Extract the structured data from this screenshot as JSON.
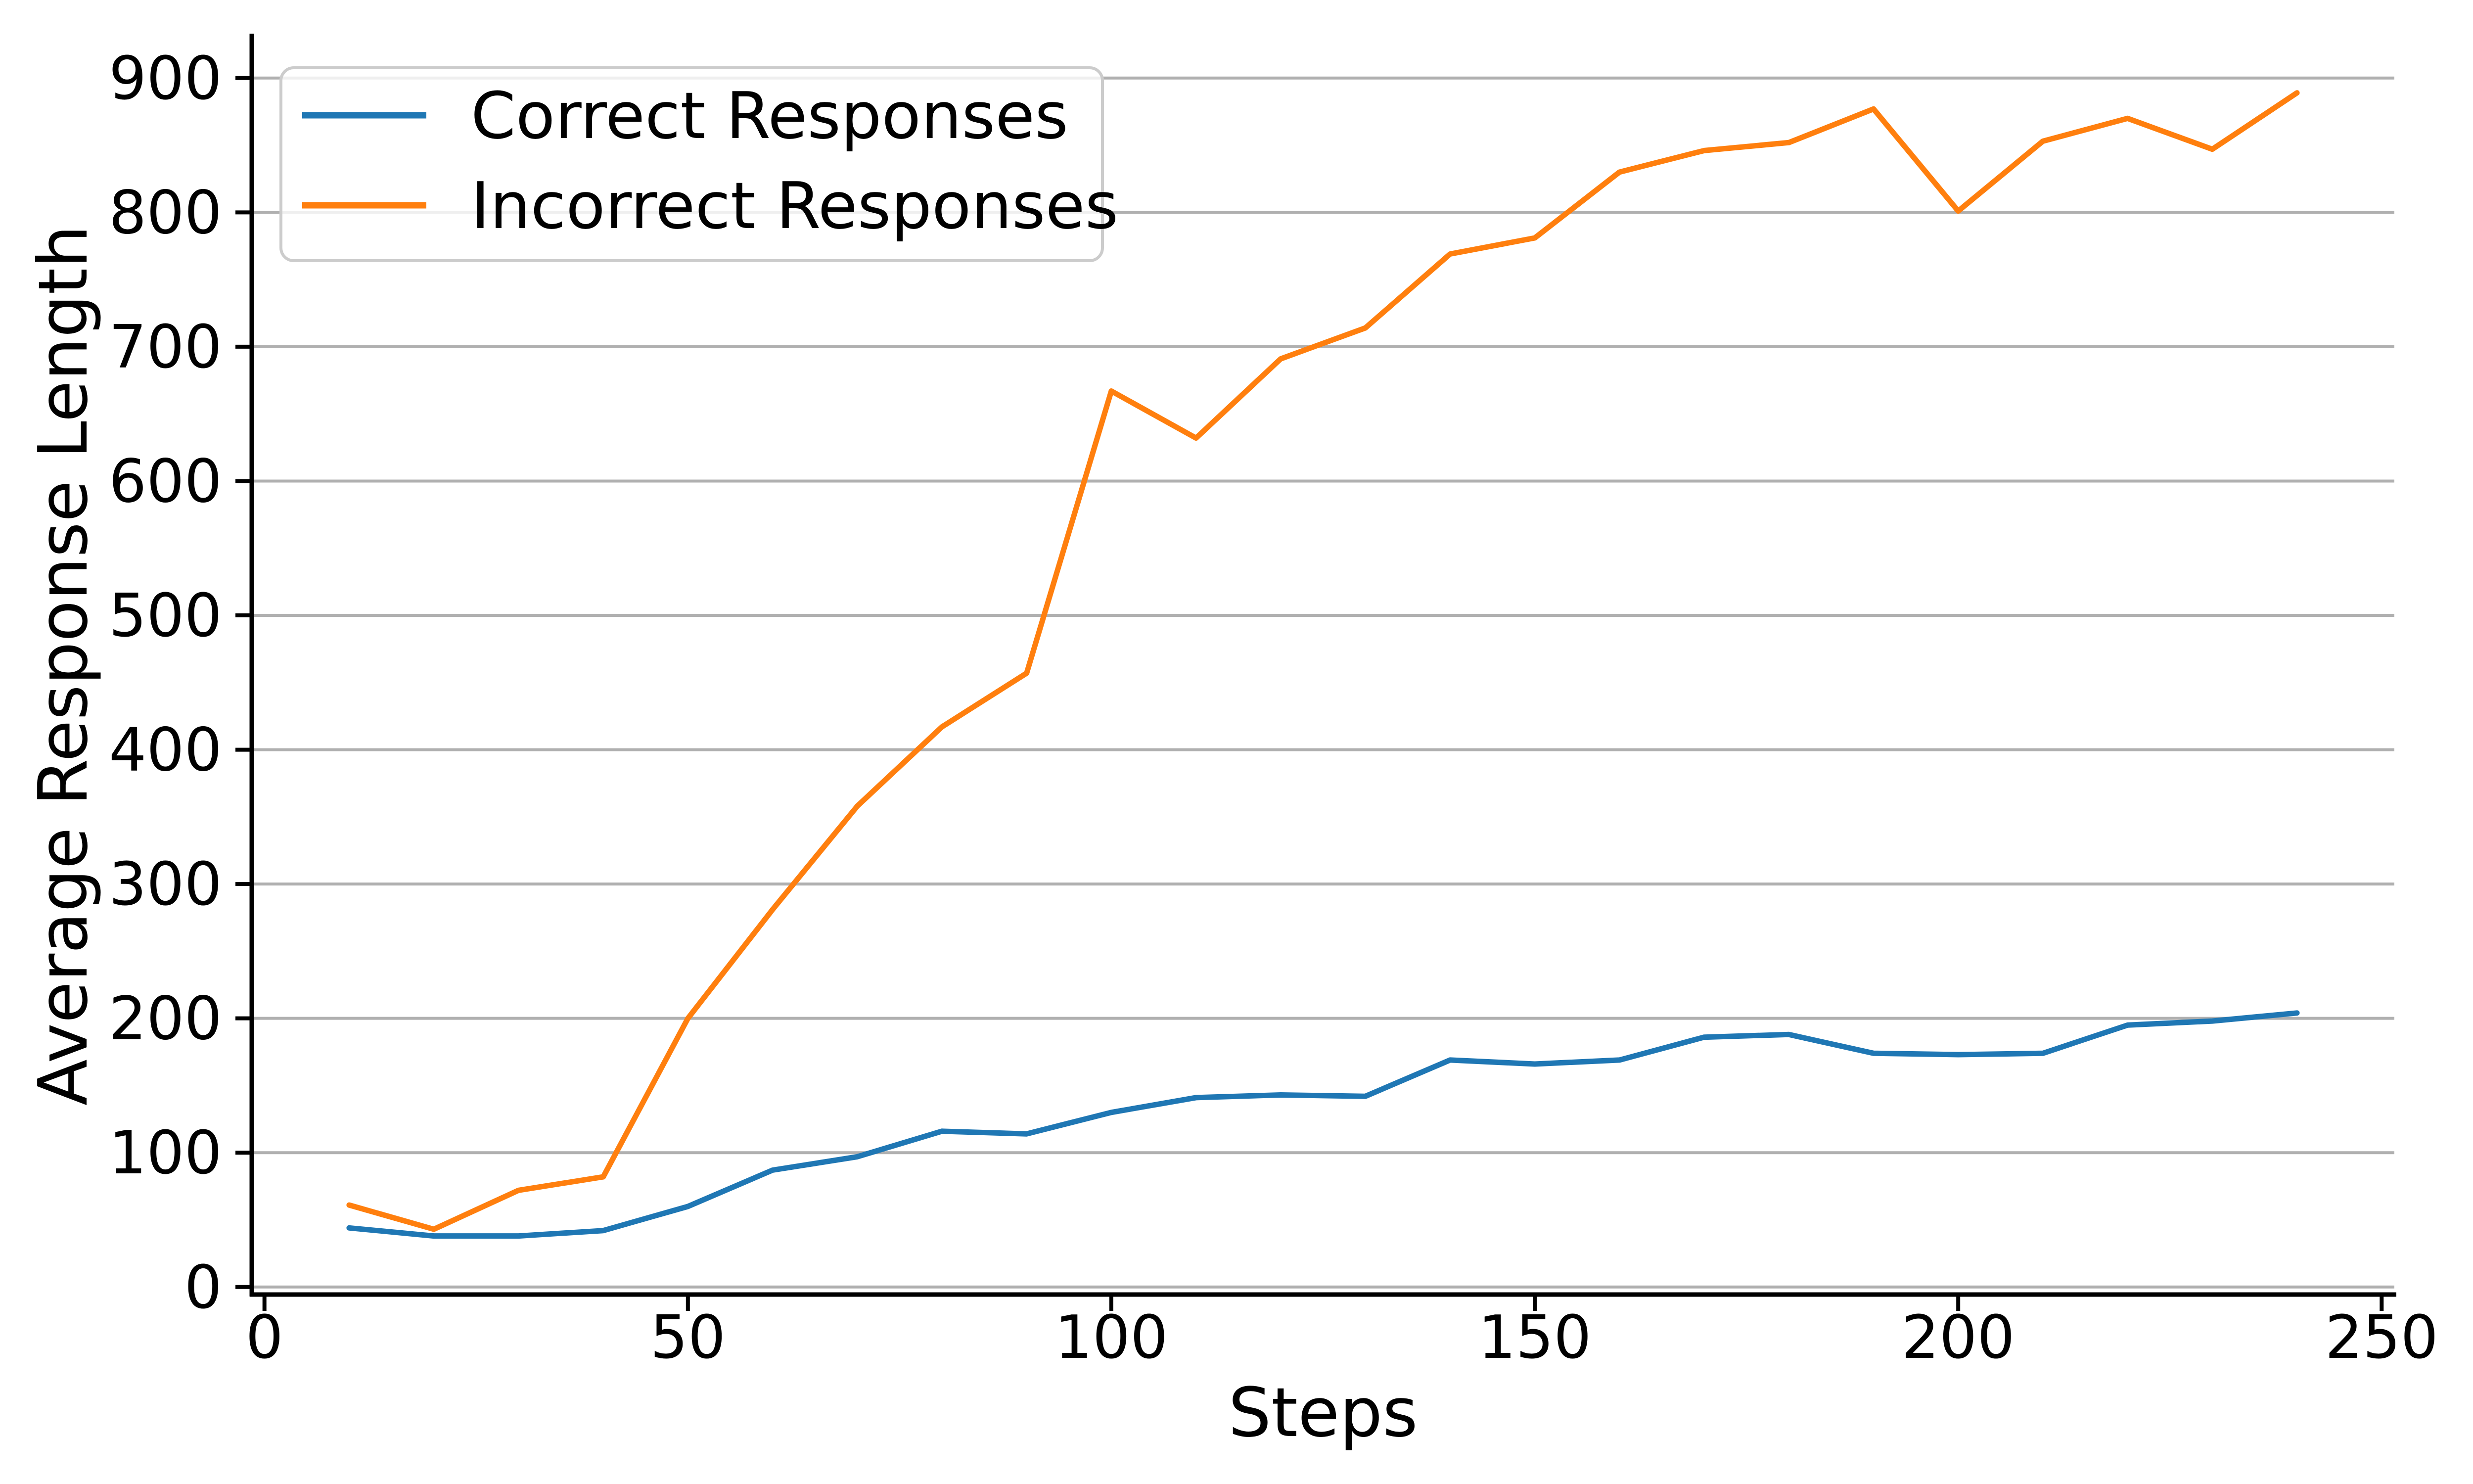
{
  "figure": {
    "background": "#ffffff",
    "grid_color": "#b0b0b0",
    "spine_color": "#000000",
    "text_color": "#000000",
    "legend_border_color": "#cccccc"
  },
  "chart_data": {
    "type": "line",
    "title": "",
    "xlabel": "Steps",
    "ylabel": "Average Response Length",
    "x": [
      10,
      20,
      30,
      40,
      50,
      60,
      70,
      80,
      90,
      100,
      110,
      120,
      130,
      140,
      150,
      160,
      170,
      180,
      190,
      200,
      210,
      220,
      230,
      240
    ],
    "series": [
      {
        "name": "Correct Responses",
        "color": "#1f77b4",
        "values": [
          44,
          38,
          38,
          42,
          60,
          87,
          97,
          116,
          114,
          130,
          141,
          143,
          142,
          169,
          166,
          169,
          186,
          188,
          174,
          173,
          174,
          195,
          198,
          204
        ]
      },
      {
        "name": "Incorrect Responses",
        "color": "#ff7f0e",
        "values": [
          61,
          43,
          72,
          82,
          200,
          281,
          358,
          417,
          457,
          667,
          632,
          691,
          714,
          769,
          781,
          830,
          846,
          852,
          877,
          801,
          853,
          870,
          847,
          889
        ]
      }
    ],
    "xticks": [
      0,
      50,
      100,
      150,
      200,
      250
    ],
    "yticks": [
      0,
      100,
      200,
      300,
      400,
      500,
      600,
      700,
      800,
      900
    ],
    "xlim": [
      -1.5,
      251.5
    ],
    "ylim": [
      -5.6,
      931.6
    ],
    "grid": "horizontal",
    "legend_position": "upper-left"
  }
}
